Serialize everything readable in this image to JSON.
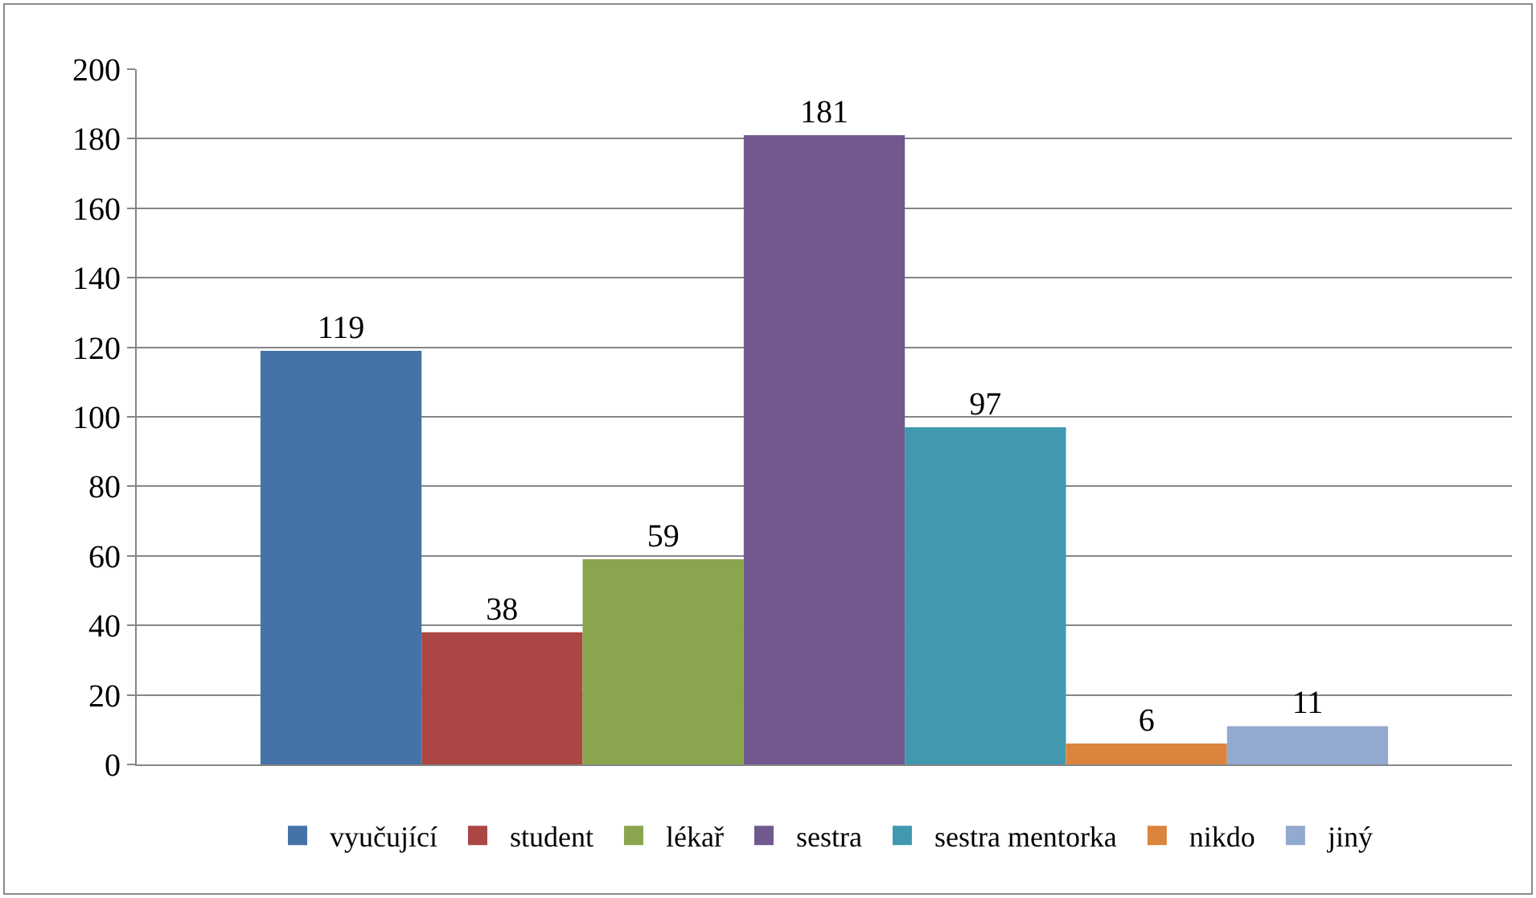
{
  "chart_data": {
    "type": "bar",
    "categories": [
      null
    ],
    "series": [
      {
        "name": "vyučující",
        "color": "#4572a7",
        "values": [
          119
        ]
      },
      {
        "name": "student",
        "color": "#aa4643",
        "values": [
          38
        ]
      },
      {
        "name": "lékař",
        "color": "#89a54e",
        "values": [
          59
        ]
      },
      {
        "name": "sestra",
        "color": "#71588f",
        "values": [
          181
        ]
      },
      {
        "name": "sestra mentorka",
        "color": "#4198af",
        "values": [
          97
        ]
      },
      {
        "name": "nikdo",
        "color": "#db843d",
        "values": [
          6
        ]
      },
      {
        "name": "jiný",
        "color": "#93a9cf",
        "values": [
          11
        ]
      }
    ],
    "ylim": [
      0,
      200
    ],
    "yticks": [
      0,
      20,
      40,
      60,
      80,
      100,
      120,
      140,
      160,
      180,
      200
    ],
    "grid": "y",
    "legend": "bottom",
    "data_labels": true
  }
}
